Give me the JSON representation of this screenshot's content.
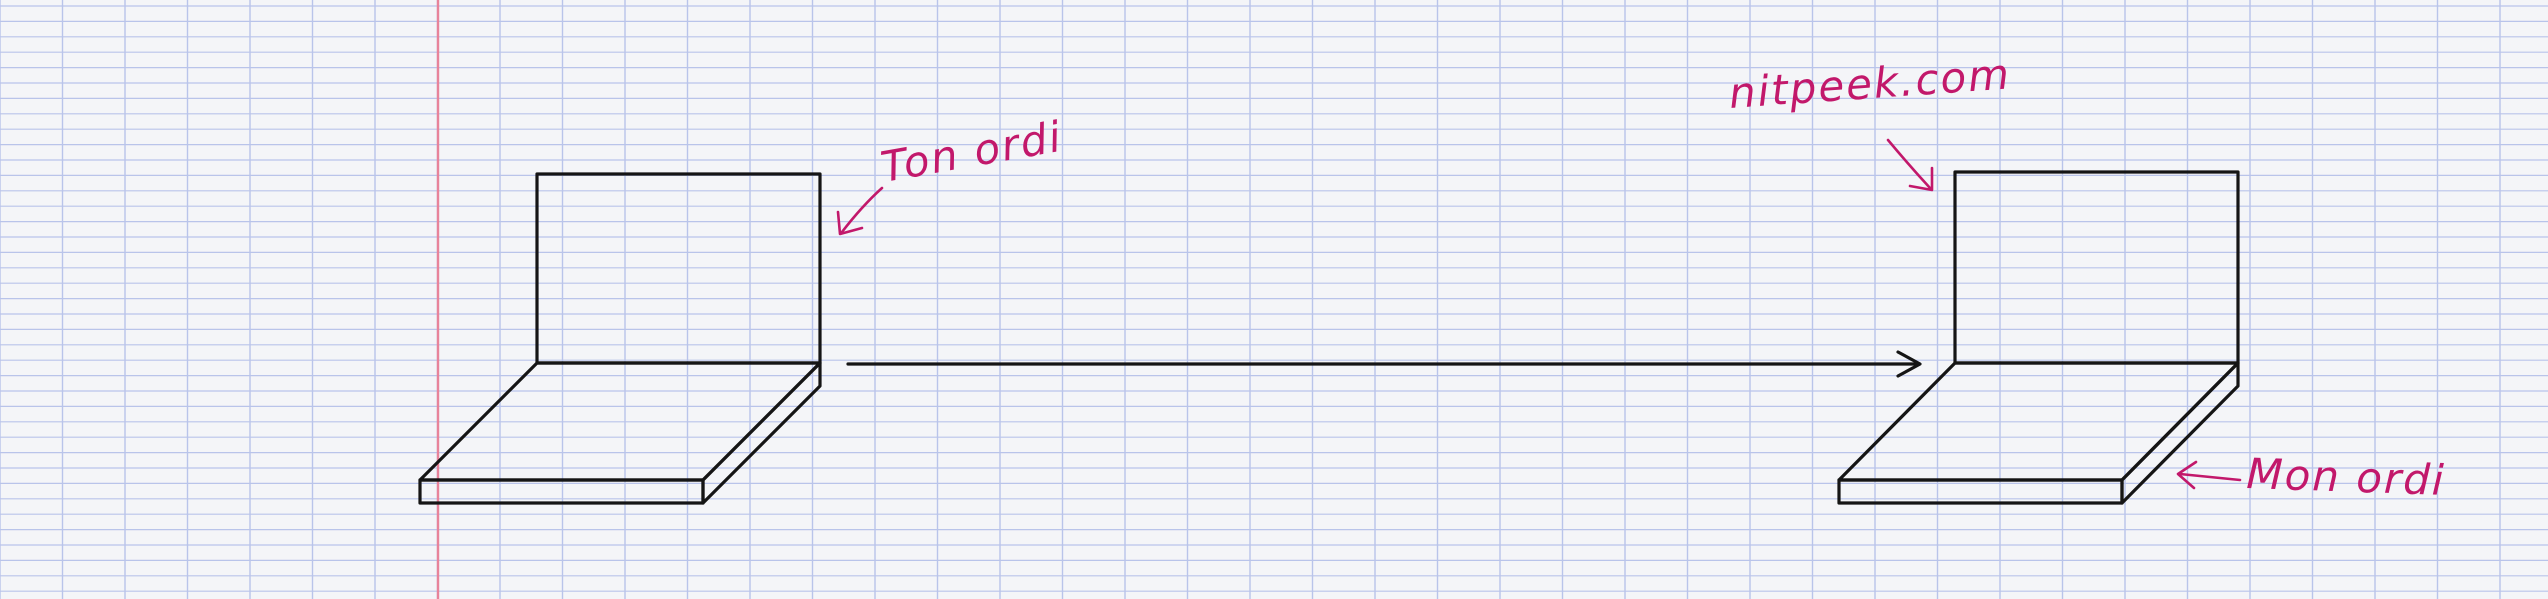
{
  "diagram": {
    "labels": {
      "left_computer": "Ton ordi",
      "website": "nitpeek.com",
      "right_computer": "Mon ordi"
    },
    "colors": {
      "paper": "#f4f5f8",
      "grid_line": "#b9c4ea",
      "margin_line": "#e8839a",
      "ink": "#151515",
      "annotation": "#c2186b"
    }
  }
}
